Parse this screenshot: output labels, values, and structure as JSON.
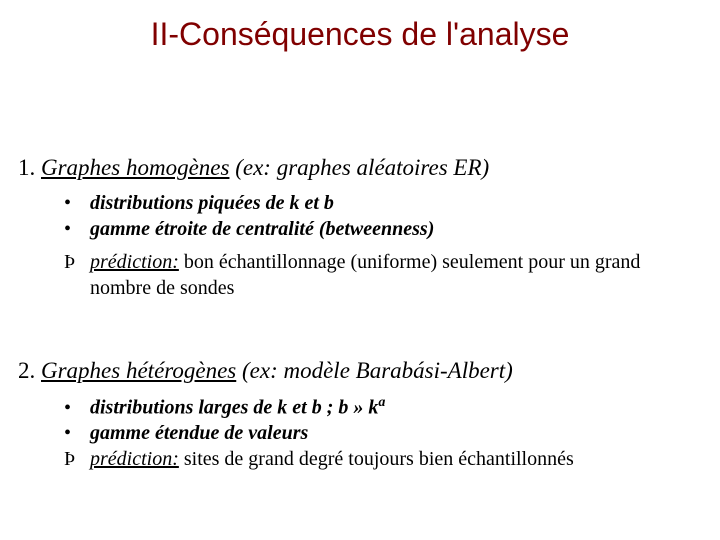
{
  "title": "II-Conséquences de l'analyse",
  "section1": {
    "num": "1.",
    "heading_underlined": "Graphes homogènes",
    "heading_rest": " (ex: graphes aléatoires ER)",
    "b1": "distributions piquées de k et b",
    "b2": "gamme étroite de centralité (betweenness)",
    "pred_label": "prédiction:",
    "pred_text": " bon échantillonnage (uniforme) seulement pour un grand nombre de sondes"
  },
  "section2": {
    "num": "2.",
    "heading_underlined": "Graphes hétérogènes",
    "heading_rest": "  (ex: modèle Barabási-Albert)",
    "b1": "distributions larges de k et b ; b » k",
    "b1_sup": "a",
    "b2": "gamme étendue de valeurs",
    "pred_label": "prédiction:",
    "pred_text": " sites de grand degré toujours bien échantillonnés"
  },
  "glyphs": {
    "bullet": "•",
    "therefore": "Þ"
  },
  "colors": {
    "title": "#800000",
    "body": "#000000",
    "background": "#ffffff"
  },
  "typography": {
    "title_fontsize": 32,
    "heading_fontsize": 23,
    "body_fontsize": 20,
    "title_font": "Arial",
    "body_font": "Times New Roman"
  }
}
